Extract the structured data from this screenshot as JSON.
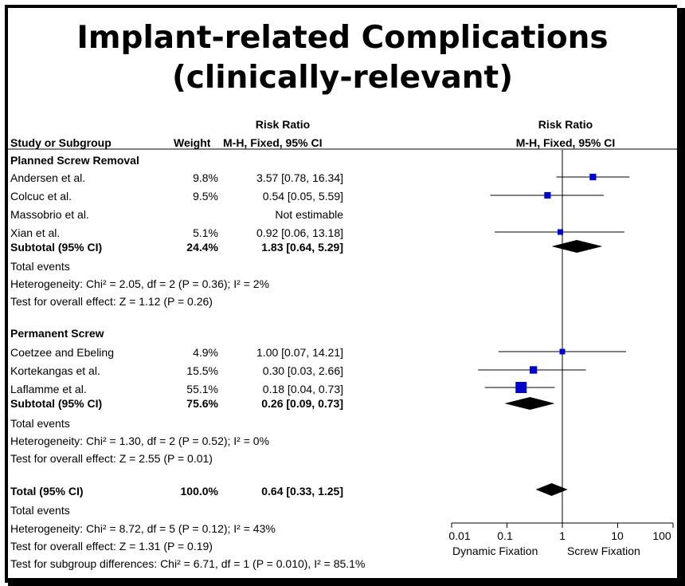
{
  "title_line1": "Implant-related Complications",
  "title_line2": "(clinically-relevant)",
  "header": {
    "study_col": "Study or Subgroup",
    "weight_col": "Weight",
    "rr_col_top": "Risk Ratio",
    "rr_col_bottom": "M-H, Fixed, 95% CI",
    "plot_col_top": "Risk Ratio",
    "plot_col_bottom": "M-H, Fixed, 95% CI"
  },
  "groups": [
    {
      "name": "Planned Screw Removal",
      "subtotal_label": "Subtotal (95% CI)",
      "subtotal_weight": "24.4%",
      "subtotal_ci": "1.83 [0.64, 5.29]",
      "total_events": "Total events",
      "heterogeneity": "Heterogeneity: Chi² = 2.05, df = 2 (P = 0.36); I² = 2%",
      "overall_effect": "Test for overall effect: Z = 1.12 (P = 0.26)"
    },
    {
      "name": "Permanent Screw",
      "subtotal_label": "Subtotal (95% CI)",
      "subtotal_weight": "75.6%",
      "subtotal_ci": "0.26 [0.09, 0.73]",
      "total_events": "Total events",
      "heterogeneity": "Heterogeneity: Chi² = 1.30, df = 2 (P = 0.52); I² = 0%",
      "overall_effect": "Test for overall effect: Z = 2.55 (P = 0.01)"
    }
  ],
  "total": {
    "label": "Total (95% CI)",
    "weight": "100.0%",
    "ci": "0.64 [0.33, 1.25]",
    "total_events": "Total events",
    "heterogeneity": "Heterogeneity: Chi² = 8.72, df = 5 (P = 0.12); I² = 43%",
    "overall_effect": "Test for overall effect: Z = 1.31 (P = 0.19)",
    "subgroup_diff": "Test for subgroup differences: Chi² = 6.71, df = 1 (P = 0.010), I² = 85.1%"
  },
  "axis": {
    "left_label": "Dynamic Fixation",
    "right_label": "Screw Fixation"
  },
  "colors": {
    "marker": "#0000cc",
    "diamond": "#000000",
    "line": "#000000"
  },
  "chart_data": {
    "type": "forest",
    "x_scale": "log",
    "xlim": [
      0.01,
      100
    ],
    "xticks": [
      "0.01",
      "0.1",
      "1",
      "10",
      "100"
    ],
    "null_line": 1,
    "studies": [
      {
        "group": 0,
        "name": "Andersen et al.",
        "weight": "9.8%",
        "ci_text": "3.57 [0.78, 16.34]",
        "rr": 3.57,
        "lo": 0.78,
        "hi": 16.34,
        "w": 9.8
      },
      {
        "group": 0,
        "name": "Colcuc et al.",
        "weight": "9.5%",
        "ci_text": "0.54 [0.05, 5.59]",
        "rr": 0.54,
        "lo": 0.05,
        "hi": 5.59,
        "w": 9.5
      },
      {
        "group": 0,
        "name": "Massobrio et al.",
        "weight": "",
        "ci_text": "Not estimable",
        "rr": null,
        "lo": null,
        "hi": null,
        "w": 0
      },
      {
        "group": 0,
        "name": "Xian et al.",
        "weight": "5.1%",
        "ci_text": "0.92 [0.06, 13.18]",
        "rr": 0.92,
        "lo": 0.06,
        "hi": 13.18,
        "w": 5.1
      },
      {
        "group": 1,
        "name": "Coetzee and Ebeling",
        "weight": "4.9%",
        "ci_text": "1.00 [0.07, 14.21]",
        "rr": 1.0,
        "lo": 0.07,
        "hi": 14.21,
        "w": 4.9
      },
      {
        "group": 1,
        "name": "Kortekangas et al.",
        "weight": "15.5%",
        "ci_text": "0.30 [0.03, 2.66]",
        "rr": 0.3,
        "lo": 0.03,
        "hi": 2.66,
        "w": 15.5
      },
      {
        "group": 1,
        "name": "Laflamme et al.",
        "weight": "55.1%",
        "ci_text": "0.18 [0.04, 0.73]",
        "rr": 0.18,
        "lo": 0.04,
        "hi": 0.73,
        "w": 55.1
      }
    ],
    "pooled": [
      {
        "label": "Planned Screw Removal subtotal",
        "rr": 1.83,
        "lo": 0.64,
        "hi": 5.29
      },
      {
        "label": "Permanent Screw subtotal",
        "rr": 0.26,
        "lo": 0.09,
        "hi": 0.73
      },
      {
        "label": "Total",
        "rr": 0.64,
        "lo": 0.33,
        "hi": 1.25
      }
    ]
  }
}
